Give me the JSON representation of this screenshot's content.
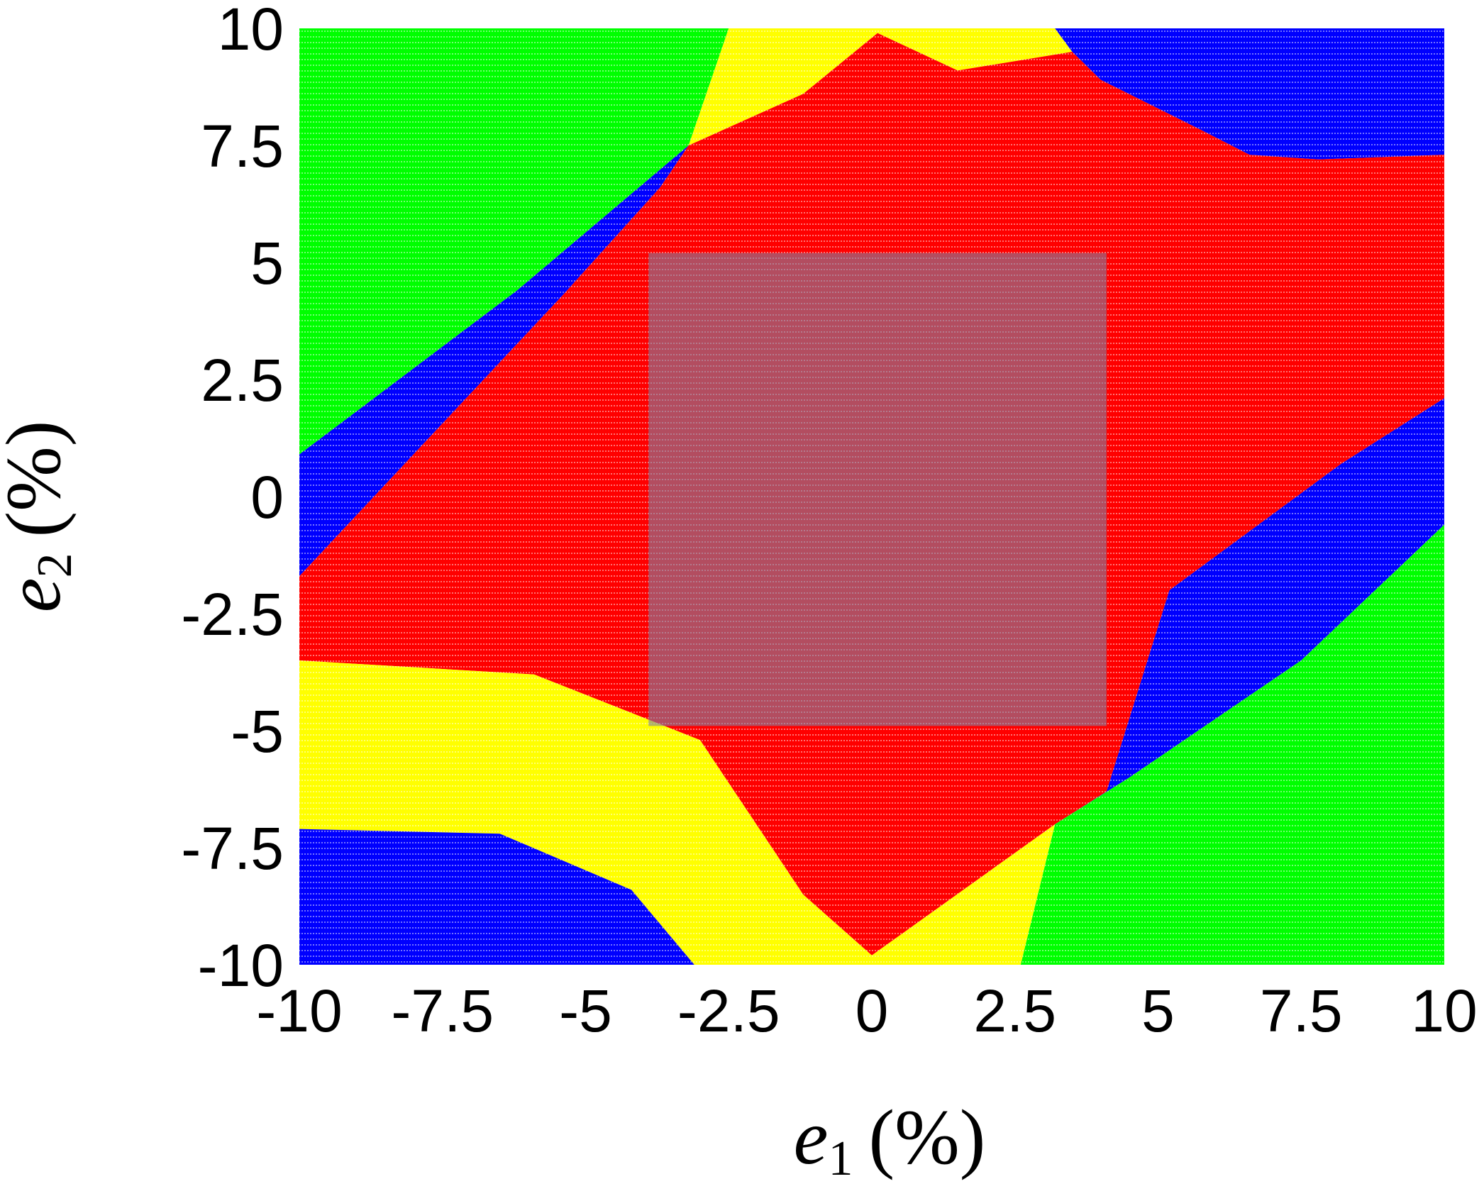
{
  "chart_data": {
    "type": "heatmap",
    "title": "",
    "xlabel": {
      "variable": "e",
      "subscript": "1",
      "unit": "(%)"
    },
    "ylabel": {
      "variable": "e",
      "subscript": "2",
      "unit": "(%)"
    },
    "xlim": [
      -10,
      10
    ],
    "ylim": [
      -10,
      10
    ],
    "x_ticks": [
      -10,
      -7.5,
      -5,
      -2.5,
      0,
      2.5,
      5,
      7.5,
      10
    ],
    "x_tick_labels": [
      "-10",
      "-7.5",
      "-5",
      "-2.5",
      "0",
      "2.5",
      "5",
      "7.5",
      "10"
    ],
    "y_ticks": [
      -10,
      -7.5,
      -5,
      -2.5,
      0,
      2.5,
      5,
      7.5,
      10
    ],
    "y_tick_labels": [
      "-10",
      "-7.5",
      "-5",
      "-2.5",
      "0",
      "2.5",
      "5",
      "7.5",
      "10"
    ],
    "grid": false,
    "legend": "none",
    "regions": [
      {
        "category": "green",
        "color": "#00ff00",
        "polygon": [
          [
            -10,
            10
          ],
          [
            -2.5,
            10
          ],
          [
            -3.2,
            7.5
          ],
          [
            -6.2,
            4.4
          ],
          [
            -10,
            0.9
          ]
        ]
      },
      {
        "category": "yellow",
        "color": "#ffff00",
        "polygon": [
          [
            -2.5,
            10
          ],
          [
            3.2,
            10
          ],
          [
            3.5,
            9.5
          ],
          [
            1.5,
            9.1
          ],
          [
            0.1,
            9.9
          ],
          [
            -1.2,
            8.6
          ],
          [
            -3.2,
            7.5
          ]
        ]
      },
      {
        "category": "blue",
        "color": "#0000ff",
        "polygon": [
          [
            3.2,
            10
          ],
          [
            10,
            10
          ],
          [
            10,
            7.3
          ],
          [
            7.8,
            7.2
          ],
          [
            6.6,
            7.3
          ],
          [
            5.8,
            7.8
          ],
          [
            4.0,
            8.9
          ],
          [
            3.5,
            9.5
          ]
        ]
      },
      {
        "category": "blue",
        "color": "#0000ff",
        "polygon": [
          [
            -10,
            0.9
          ],
          [
            -6.2,
            4.4
          ],
          [
            -3.2,
            7.5
          ],
          [
            -3.7,
            6.6
          ],
          [
            -5.4,
            4.3
          ],
          [
            -10,
            -1.7
          ]
        ]
      },
      {
        "category": "red",
        "color": "#ff0000",
        "polygon": [
          [
            -3.2,
            7.5
          ],
          [
            -1.2,
            8.6
          ],
          [
            0.1,
            9.9
          ],
          [
            1.5,
            9.1
          ],
          [
            3.5,
            9.5
          ],
          [
            4.0,
            8.9
          ],
          [
            5.8,
            7.8
          ],
          [
            6.6,
            7.3
          ],
          [
            7.8,
            7.2
          ],
          [
            10,
            7.3
          ],
          [
            10,
            2.1
          ],
          [
            8.2,
            0.7
          ],
          [
            5.2,
            -2.0
          ],
          [
            4.1,
            -6.3
          ],
          [
            3.2,
            -7.0
          ],
          [
            0.0,
            -9.8
          ],
          [
            -1.2,
            -8.5
          ],
          [
            -3.0,
            -5.2
          ],
          [
            -5.9,
            -3.8
          ],
          [
            -10,
            -3.5
          ],
          [
            -10,
            -1.7
          ],
          [
            -5.4,
            4.3
          ],
          [
            -3.7,
            6.6
          ]
        ]
      },
      {
        "category": "blue",
        "color": "#0000ff",
        "polygon": [
          [
            10,
            2.1
          ],
          [
            8.2,
            0.7
          ],
          [
            5.2,
            -2.0
          ],
          [
            4.1,
            -6.3
          ],
          [
            3.2,
            -7.0
          ],
          [
            4.5,
            -6.0
          ],
          [
            7.5,
            -3.5
          ],
          [
            10,
            -0.6
          ]
        ]
      },
      {
        "category": "green",
        "color": "#00ff00",
        "polygon": [
          [
            10,
            -0.6
          ],
          [
            7.5,
            -3.5
          ],
          [
            4.5,
            -6.0
          ],
          [
            3.2,
            -7.0
          ],
          [
            2.6,
            -10
          ],
          [
            10,
            -10
          ]
        ]
      },
      {
        "category": "yellow",
        "color": "#ffff00",
        "polygon": [
          [
            -10,
            -3.5
          ],
          [
            -5.9,
            -3.8
          ],
          [
            -3.0,
            -5.2
          ],
          [
            -1.2,
            -8.5
          ],
          [
            0.0,
            -9.8
          ],
          [
            3.2,
            -7.0
          ],
          [
            2.6,
            -10
          ],
          [
            -3.1,
            -10
          ],
          [
            -4.2,
            -8.4
          ],
          [
            -6.5,
            -7.2
          ],
          [
            -10,
            -7.1
          ]
        ]
      },
      {
        "category": "blue",
        "color": "#0000ff",
        "polygon": [
          [
            -10,
            -7.1
          ],
          [
            -6.5,
            -7.2
          ],
          [
            -4.2,
            -8.4
          ],
          [
            -3.1,
            -10
          ],
          [
            -10,
            -10
          ]
        ]
      }
    ],
    "highlight_box": {
      "x": [
        -3.9,
        4.1
      ],
      "y": [
        -4.9,
        5.2
      ],
      "color": "#8080a0",
      "opacity": 0.6
    }
  }
}
